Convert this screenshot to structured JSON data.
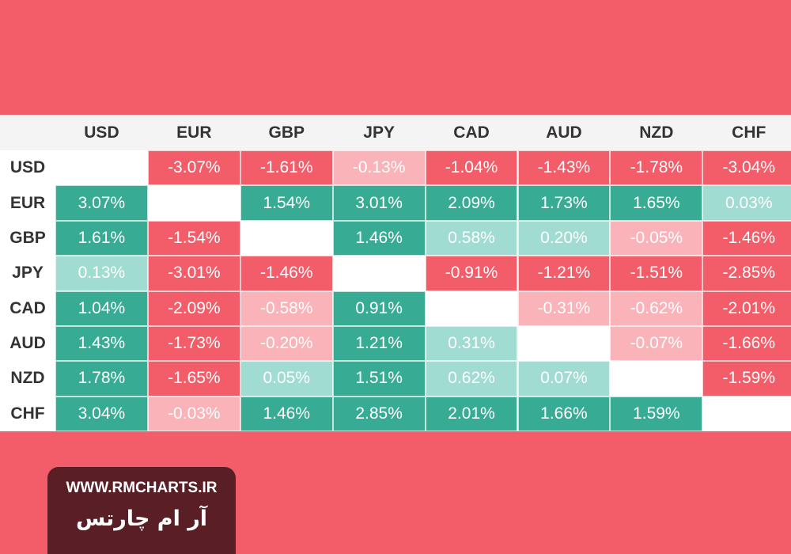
{
  "table": {
    "columns": [
      "USD",
      "EUR",
      "GBP",
      "JPY",
      "CAD",
      "AUD",
      "NZD",
      "CHF"
    ],
    "rows": [
      {
        "label": "USD",
        "cells": [
          null,
          {
            "text": "-3.07%",
            "color": "#f25d69"
          },
          {
            "text": "-1.61%",
            "color": "#f25d69"
          },
          {
            "text": "-0.13%",
            "color": "#fbb3ba"
          },
          {
            "text": "-1.04%",
            "color": "#f25d69"
          },
          {
            "text": "-1.43%",
            "color": "#f25d69"
          },
          {
            "text": "-1.78%",
            "color": "#f25d69"
          },
          {
            "text": "-3.04%",
            "color": "#f25d69"
          }
        ]
      },
      {
        "label": "EUR",
        "cells": [
          {
            "text": "3.07%",
            "color": "#38ab95"
          },
          null,
          {
            "text": "1.54%",
            "color": "#38ab95"
          },
          {
            "text": "3.01%",
            "color": "#38ab95"
          },
          {
            "text": "2.09%",
            "color": "#38ab95"
          },
          {
            "text": "1.73%",
            "color": "#38ab95"
          },
          {
            "text": "1.65%",
            "color": "#38ab95"
          },
          {
            "text": "0.03%",
            "color": "#a0dcd1"
          }
        ]
      },
      {
        "label": "GBP",
        "cells": [
          {
            "text": "1.61%",
            "color": "#38ab95"
          },
          {
            "text": "-1.54%",
            "color": "#f25d69"
          },
          null,
          {
            "text": "1.46%",
            "color": "#38ab95"
          },
          {
            "text": "0.58%",
            "color": "#a0dcd1"
          },
          {
            "text": "0.20%",
            "color": "#a0dcd1"
          },
          {
            "text": "-0.05%",
            "color": "#fbb3ba"
          },
          {
            "text": "-1.46%",
            "color": "#f25d69"
          }
        ]
      },
      {
        "label": "JPY",
        "cells": [
          {
            "text": "0.13%",
            "color": "#a0dcd1"
          },
          {
            "text": "-3.01%",
            "color": "#f25d69"
          },
          {
            "text": "-1.46%",
            "color": "#f25d69"
          },
          null,
          {
            "text": "-0.91%",
            "color": "#f25d69"
          },
          {
            "text": "-1.21%",
            "color": "#f25d69"
          },
          {
            "text": "-1.51%",
            "color": "#f25d69"
          },
          {
            "text": "-2.85%",
            "color": "#f25d69"
          }
        ]
      },
      {
        "label": "CAD",
        "cells": [
          {
            "text": "1.04%",
            "color": "#38ab95"
          },
          {
            "text": "-2.09%",
            "color": "#f25d69"
          },
          {
            "text": "-0.58%",
            "color": "#fbb3ba"
          },
          {
            "text": "0.91%",
            "color": "#38ab95"
          },
          null,
          {
            "text": "-0.31%",
            "color": "#fbb3ba"
          },
          {
            "text": "-0.62%",
            "color": "#fbb3ba"
          },
          {
            "text": "-2.01%",
            "color": "#f25d69"
          }
        ]
      },
      {
        "label": "AUD",
        "cells": [
          {
            "text": "1.43%",
            "color": "#38ab95"
          },
          {
            "text": "-1.73%",
            "color": "#f25d69"
          },
          {
            "text": "-0.20%",
            "color": "#fbb3ba"
          },
          {
            "text": "1.21%",
            "color": "#38ab95"
          },
          {
            "text": "0.31%",
            "color": "#a0dcd1"
          },
          null,
          {
            "text": "-0.07%",
            "color": "#fbb3ba"
          },
          {
            "text": "-1.66%",
            "color": "#f25d69"
          }
        ]
      },
      {
        "label": "NZD",
        "cells": [
          {
            "text": "1.78%",
            "color": "#38ab95"
          },
          {
            "text": "-1.65%",
            "color": "#f25d69"
          },
          {
            "text": "0.05%",
            "color": "#a0dcd1"
          },
          {
            "text": "1.51%",
            "color": "#38ab95"
          },
          {
            "text": "0.62%",
            "color": "#a0dcd1"
          },
          {
            "text": "0.07%",
            "color": "#a0dcd1"
          },
          null,
          {
            "text": "-1.59%",
            "color": "#f25d69"
          }
        ]
      },
      {
        "label": "CHF",
        "cells": [
          {
            "text": "3.04%",
            "color": "#38ab95"
          },
          {
            "text": "-0.03%",
            "color": "#fbb3ba"
          },
          {
            "text": "1.46%",
            "color": "#38ab95"
          },
          {
            "text": "2.85%",
            "color": "#38ab95"
          },
          {
            "text": "2.01%",
            "color": "#38ab95"
          },
          {
            "text": "1.66%",
            "color": "#38ab95"
          },
          {
            "text": "1.59%",
            "color": "#38ab95"
          },
          null
        ]
      }
    ]
  },
  "brand": {
    "url": "WWW.RMCHARTS.IR",
    "name": "آر ام چارتس"
  }
}
